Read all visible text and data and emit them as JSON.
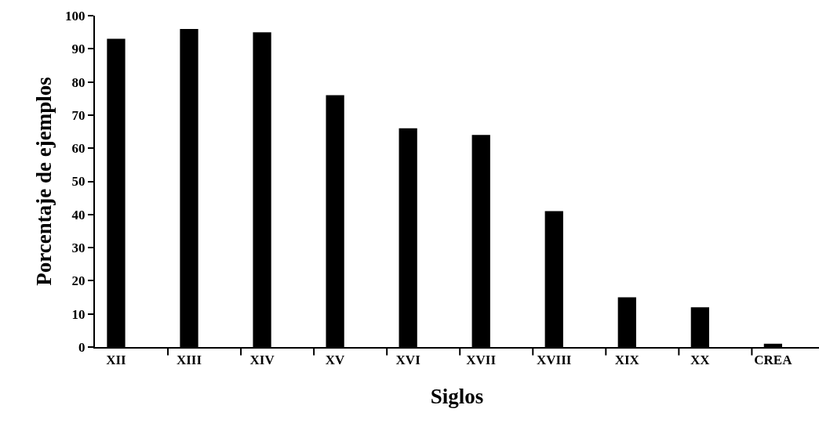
{
  "chart_data": {
    "type": "bar",
    "xlabel": "Siglos",
    "ylabel": "Porcentaje de ejemplos",
    "categories": [
      "XII",
      "XIII",
      "XIV",
      "XV",
      "XVI",
      "XVII",
      "XVIII",
      "XIX",
      "XX",
      "CREA"
    ],
    "values": [
      93,
      96,
      95,
      76,
      66,
      64,
      41,
      15,
      12,
      1
    ],
    "color": "#000000",
    "ylim": [
      0,
      100
    ],
    "yticks": [
      0,
      10,
      20,
      30,
      40,
      50,
      60,
      70,
      80,
      90,
      100
    ]
  }
}
